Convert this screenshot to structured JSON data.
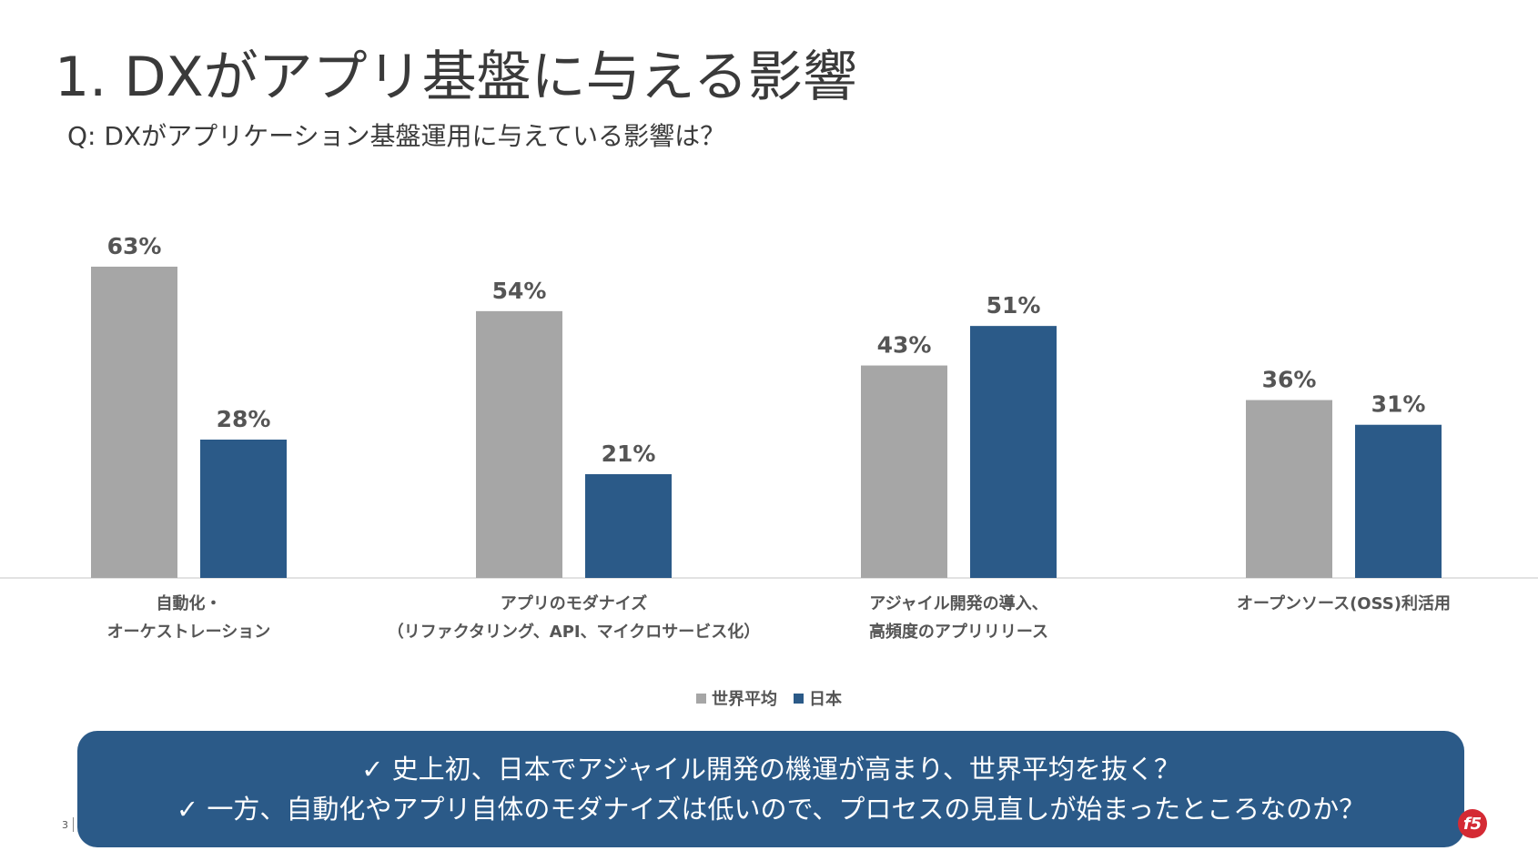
{
  "title": "1. DXがアプリ基盤に与える影響",
  "subtitle": "Q: DXがアプリケーション基盤運用に与えている影響は？",
  "chart_data": {
    "type": "bar",
    "categories": [
      [
        "自動化・",
        "オーケストレーション"
      ],
      [
        "アプリのモダナイズ",
        "（リファクタリング、API、マイクロサービス化）"
      ],
      [
        "アジャイル開発の導入、",
        "高頻度のアプリリリース"
      ],
      [
        "オープンソース(OSS)利活用"
      ]
    ],
    "series": [
      {
        "name": "世界平均",
        "color": "#a6a6a6",
        "values": [
          63,
          54,
          43,
          36
        ],
        "labels": [
          "63%",
          "54%",
          "43%",
          "36%"
        ]
      },
      {
        "name": "日本",
        "color": "#2b5a88",
        "values": [
          28,
          21,
          51,
          31
        ],
        "labels": [
          "28%",
          "21%",
          "51%",
          "31%"
        ]
      }
    ],
    "ylim": [
      0,
      70
    ],
    "grid": false,
    "legend_position": "bottom",
    "value_unit": "%"
  },
  "callout": {
    "lines": [
      "✓ 史上初、日本でアジャイル開発の機運が高まり、世界平均を抜く？",
      "✓ 一方、自動化やアプリ自体のモダナイズは低いので、プロセスの見直しが始まったところなのか？"
    ]
  },
  "footer": {
    "page_number": "3",
    "logo_text": "f5"
  },
  "colors": {
    "accent": "#2b5a88",
    "gray": "#a6a6a6",
    "logo": "#d42a34"
  }
}
